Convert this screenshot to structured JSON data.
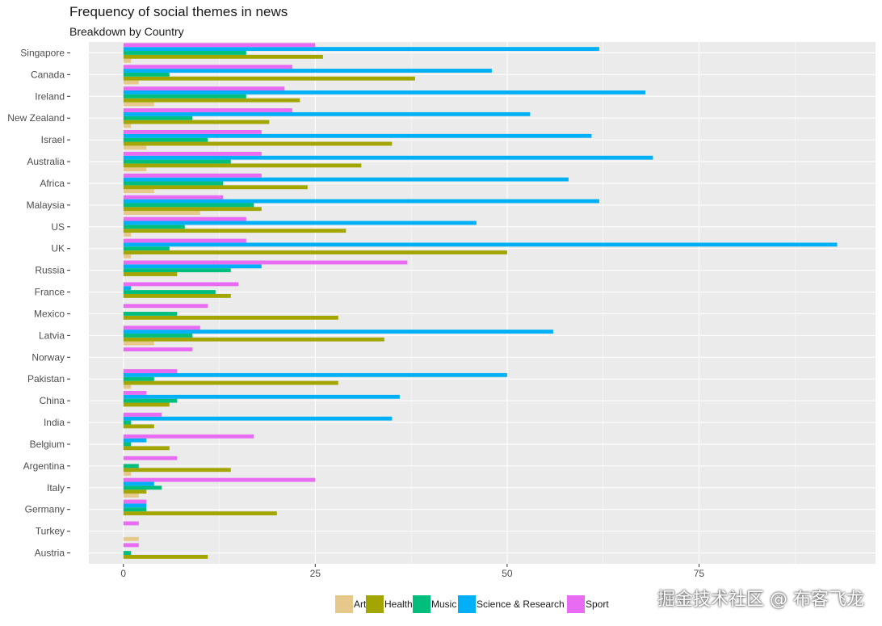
{
  "chart_data": {
    "type": "bar",
    "orientation": "horizontal",
    "title": "Frequency of social themes in news",
    "subtitle": "Breakdown by Country",
    "xlabel": "",
    "ylabel": "",
    "xlim": [
      -4.5,
      98
    ],
    "x_ticks": [
      0,
      25,
      50,
      75
    ],
    "grid": true,
    "legend_position": "bottom",
    "categories": [
      "Singapore",
      "Canada",
      "Ireland",
      "New Zealand",
      "Israel",
      "Australia",
      "Africa",
      "Malaysia",
      "US",
      "UK",
      "Russia",
      "France",
      "Mexico",
      "Latvia",
      "Norway",
      "Pakistan",
      "China",
      "India",
      "Belgium",
      "Argentina",
      "Italy",
      "Germany",
      "Turkey",
      "Austria"
    ],
    "series": [
      {
        "name": "Art",
        "color": "#E6C88A",
        "values": [
          1,
          2,
          4,
          1,
          3,
          3,
          4,
          10,
          1,
          1,
          0,
          0,
          0,
          4,
          0,
          1,
          0,
          0,
          0,
          1,
          2,
          0,
          2,
          0
        ]
      },
      {
        "name": "Health",
        "color": "#A3A500",
        "values": [
          26,
          38,
          23,
          19,
          35,
          31,
          24,
          18,
          29,
          50,
          7,
          14,
          28,
          34,
          0,
          28,
          6,
          4,
          6,
          14,
          3,
          20,
          0,
          11
        ]
      },
      {
        "name": "Music",
        "color": "#00BF7D",
        "values": [
          16,
          6,
          16,
          9,
          11,
          14,
          13,
          17,
          8,
          6,
          14,
          12,
          7,
          9,
          0,
          4,
          7,
          1,
          1,
          2,
          5,
          3,
          0,
          1
        ]
      },
      {
        "name": "Science & Research",
        "color": "#00B0F6",
        "values": [
          62,
          48,
          68,
          53,
          61,
          69,
          58,
          62,
          46,
          93,
          18,
          1,
          0,
          56,
          0,
          50,
          36,
          35,
          3,
          0,
          4,
          3,
          0,
          0
        ]
      },
      {
        "name": "Sport",
        "color": "#E76BF3",
        "values": [
          25,
          22,
          21,
          22,
          18,
          18,
          18,
          13,
          16,
          16,
          37,
          15,
          11,
          10,
          9,
          7,
          3,
          5,
          17,
          7,
          25,
          3,
          2,
          2
        ]
      }
    ]
  },
  "watermark": "掘金技术社区 @ 布客飞龙"
}
